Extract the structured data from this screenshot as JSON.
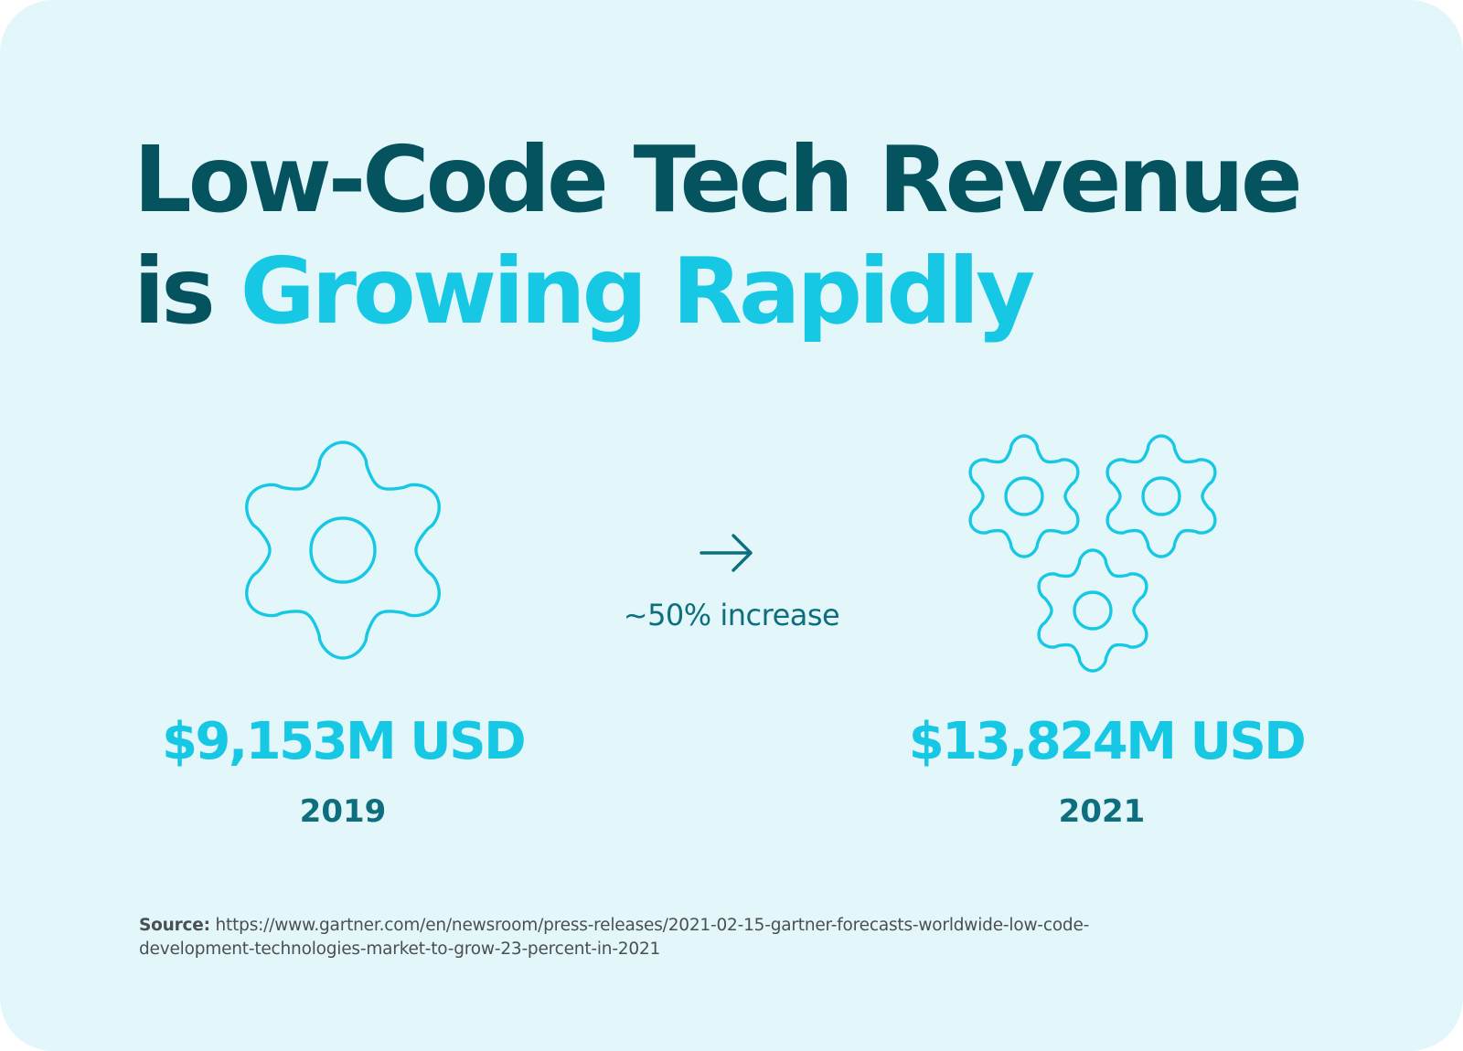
{
  "title": {
    "line1": "Low-Code Tech Revenue",
    "line2_plain": "is ",
    "line2_accent": "Growing Rapidly"
  },
  "icons": {
    "left": "gear-icon",
    "right": "gears-icon",
    "middle": "arrow-right-icon"
  },
  "comparison": {
    "increase_label": "~50% increase",
    "before": {
      "amount": "$9,153M USD",
      "year": "2019"
    },
    "after": {
      "amount": "$13,824M USD",
      "year": "2021"
    }
  },
  "source": {
    "label": "Source:",
    "url": "https://www.gartner.com/en/newsroom/press-releases/2021-02-15-gartner-forecasts-worldwide-low-code-development-technologies-market-to-grow-23-percent-in-2021"
  },
  "colors": {
    "background": "#e3f7fb",
    "dark_teal": "#04535f",
    "cyan": "#17c8e4",
    "mid_teal": "#0d6f7e"
  }
}
